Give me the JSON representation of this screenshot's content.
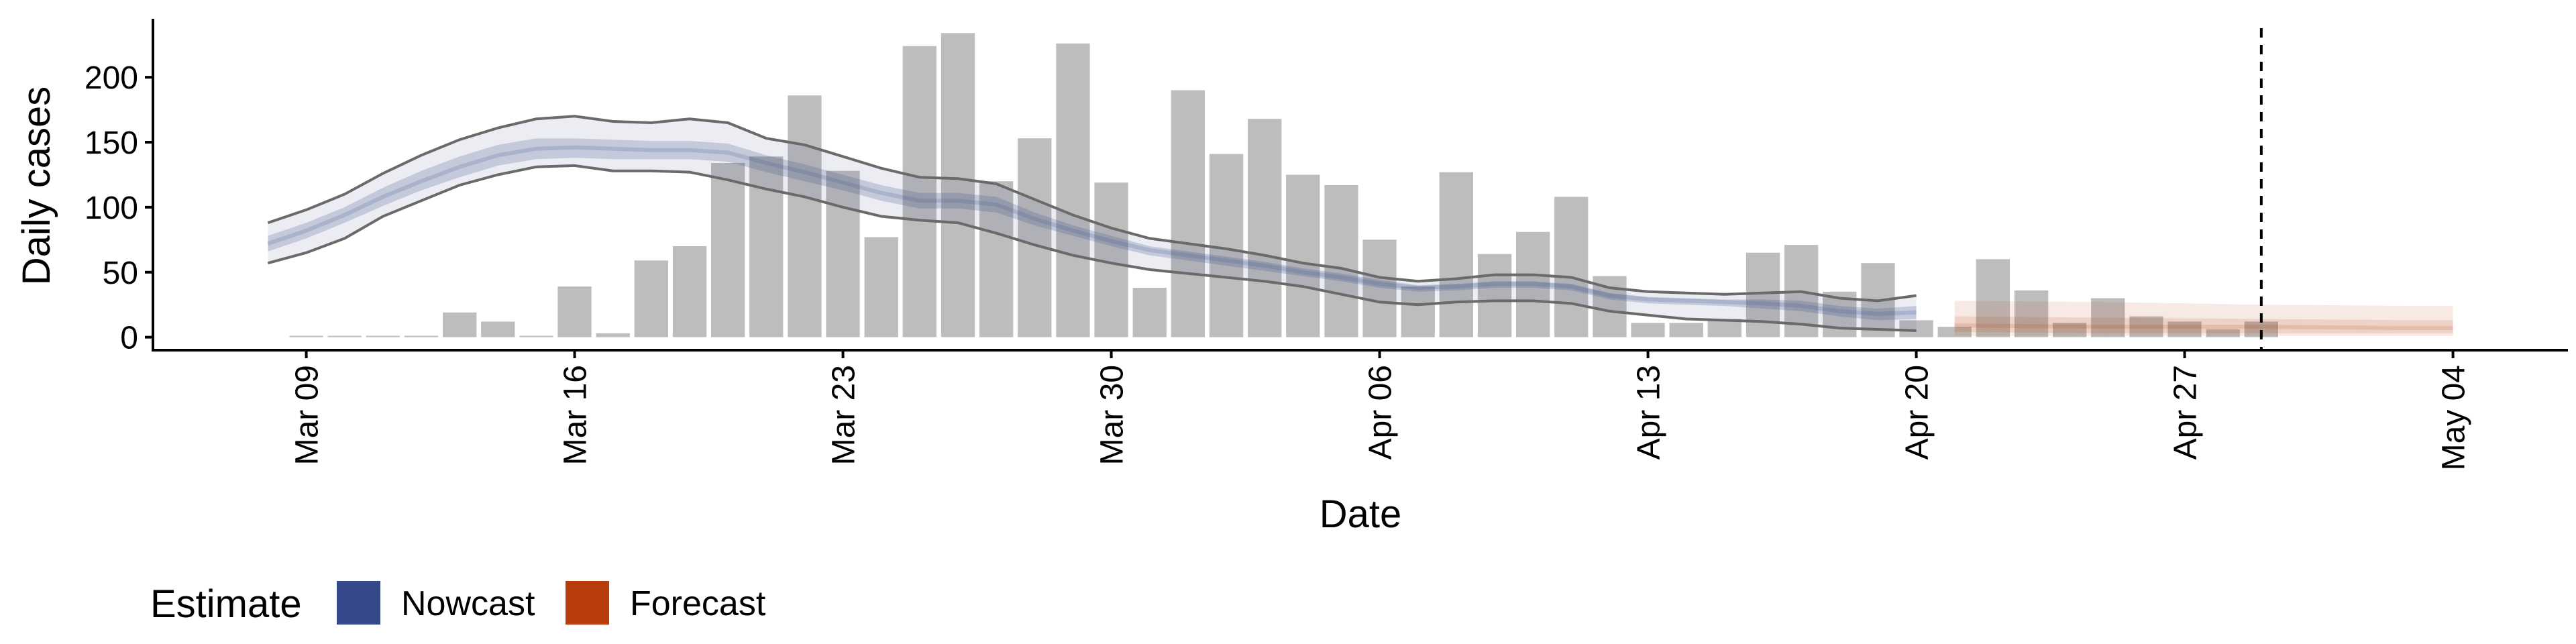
{
  "chart_data": {
    "type": "bar",
    "xlabel": "Date",
    "ylabel": "Daily cases",
    "ylim": [
      -10,
      245
    ],
    "yticks": [
      0,
      50,
      100,
      150,
      200
    ],
    "xlim": [
      "2020-03-05",
      "2020-05-07"
    ],
    "xticks": [
      "Mar 09",
      "Mar 16",
      "Mar 23",
      "Mar 30",
      "Apr 06",
      "Apr 13",
      "Apr 20",
      "Apr 27",
      "May 04"
    ],
    "xtick_dates": [
      "2020-03-09",
      "2020-03-16",
      "2020-03-23",
      "2020-03-30",
      "2020-04-06",
      "2020-04-13",
      "2020-04-20",
      "2020-04-27",
      "2020-05-04"
    ],
    "grid": false,
    "legend_position": "bottom-left",
    "cutoff_date": "2020-04-29",
    "observed_cases": {
      "color": "#bdbdbd",
      "dates": [
        "2020-03-09",
        "2020-03-10",
        "2020-03-11",
        "2020-03-12",
        "2020-03-13",
        "2020-03-14",
        "2020-03-15",
        "2020-03-16",
        "2020-03-17",
        "2020-03-18",
        "2020-03-19",
        "2020-03-20",
        "2020-03-21",
        "2020-03-22",
        "2020-03-23",
        "2020-03-24",
        "2020-03-25",
        "2020-03-26",
        "2020-03-27",
        "2020-03-28",
        "2020-03-29",
        "2020-03-30",
        "2020-03-31",
        "2020-04-01",
        "2020-04-02",
        "2020-04-03",
        "2020-04-04",
        "2020-04-05",
        "2020-04-06",
        "2020-04-07",
        "2020-04-08",
        "2020-04-09",
        "2020-04-10",
        "2020-04-11",
        "2020-04-12",
        "2020-04-13",
        "2020-04-14",
        "2020-04-15",
        "2020-04-16",
        "2020-04-17",
        "2020-04-18",
        "2020-04-19",
        "2020-04-20",
        "2020-04-21",
        "2020-04-22",
        "2020-04-23",
        "2020-04-24",
        "2020-04-25",
        "2020-04-26",
        "2020-04-27",
        "2020-04-28",
        "2020-04-29"
      ],
      "values": [
        1,
        0,
        1,
        0,
        19,
        12,
        0,
        39,
        3,
        59,
        70,
        134,
        139,
        186,
        128,
        77,
        224,
        234,
        120,
        153,
        226,
        119,
        38,
        190,
        141,
        168,
        125,
        117,
        75,
        39,
        127,
        64,
        81,
        108,
        47,
        11,
        11,
        14,
        65,
        71,
        35,
        57,
        13,
        8,
        60,
        36,
        11,
        30,
        16,
        12,
        6,
        12
      ]
    },
    "series": [
      {
        "name": "Nowcast",
        "color": "#3a4f8a",
        "dates": [
          "2020-03-08",
          "2020-03-09",
          "2020-03-10",
          "2020-03-11",
          "2020-03-12",
          "2020-03-13",
          "2020-03-14",
          "2020-03-15",
          "2020-03-16",
          "2020-03-17",
          "2020-03-18",
          "2020-03-19",
          "2020-03-20",
          "2020-03-21",
          "2020-03-22",
          "2020-03-23",
          "2020-03-24",
          "2020-03-25",
          "2020-03-26",
          "2020-03-27",
          "2020-03-28",
          "2020-03-29",
          "2020-03-30",
          "2020-03-31",
          "2020-04-01",
          "2020-04-02",
          "2020-04-03",
          "2020-04-04",
          "2020-04-05",
          "2020-04-06",
          "2020-04-07",
          "2020-04-08",
          "2020-04-09",
          "2020-04-10",
          "2020-04-11",
          "2020-04-12",
          "2020-04-13",
          "2020-04-14",
          "2020-04-15",
          "2020-04-16",
          "2020-04-17",
          "2020-04-18",
          "2020-04-19",
          "2020-04-20"
        ],
        "upper90": [
          88,
          98,
          110,
          126,
          140,
          152,
          161,
          168,
          170,
          166,
          165,
          168,
          165,
          153,
          148,
          139,
          130,
          123,
          122,
          118,
          106,
          94,
          84,
          76,
          72,
          68,
          63,
          57,
          53,
          46,
          43,
          45,
          48,
          48,
          46,
          38,
          35,
          34,
          33,
          34,
          35,
          30,
          28,
          32
        ],
        "upper50": [
          78,
          88,
          100,
          115,
          128,
          139,
          148,
          153,
          153,
          152,
          151,
          151,
          149,
          140,
          133,
          125,
          117,
          111,
          111,
          108,
          96,
          86,
          78,
          70,
          66,
          62,
          58,
          53,
          49,
          44,
          40,
          41,
          43,
          43,
          41,
          34,
          31,
          30,
          29,
          29,
          28,
          24,
          22,
          24
        ],
        "median": [
          72,
          82,
          94,
          108,
          120,
          131,
          140,
          145,
          146,
          145,
          144,
          144,
          142,
          134,
          127,
          119,
          111,
          105,
          105,
          102,
          91,
          82,
          74,
          67,
          63,
          59,
          55,
          50,
          46,
          41,
          38,
          39,
          41,
          41,
          39,
          32,
          29,
          28,
          27,
          26,
          24,
          20,
          18,
          19
        ],
        "lower50": [
          66,
          76,
          88,
          101,
          113,
          123,
          132,
          137,
          138,
          137,
          137,
          137,
          135,
          127,
          120,
          113,
          105,
          99,
          99,
          96,
          86,
          78,
          70,
          63,
          59,
          55,
          51,
          47,
          43,
          38,
          35,
          36,
          38,
          38,
          36,
          29,
          26,
          25,
          24,
          22,
          20,
          16,
          13,
          14
        ],
        "lower90": [
          57,
          65,
          76,
          93,
          105,
          117,
          125,
          131,
          132,
          128,
          128,
          127,
          121,
          114,
          108,
          100,
          93,
          90,
          88,
          80,
          71,
          63,
          57,
          52,
          49,
          46,
          43,
          39,
          33,
          27,
          25,
          27,
          28,
          28,
          26,
          20,
          17,
          14,
          13,
          12,
          10,
          7,
          6,
          5
        ]
      },
      {
        "name": "Forecast",
        "color": "#b23a0a",
        "dates": [
          "2020-04-21",
          "2020-04-25",
          "2020-04-29",
          "2020-05-03",
          "2020-05-04"
        ],
        "upper90": [
          28,
          27,
          25,
          24,
          24
        ],
        "upper50": [
          16,
          15,
          14,
          13,
          13
        ],
        "median": [
          9,
          8,
          8,
          7,
          7
        ],
        "lower50": [
          4,
          3,
          3,
          3,
          3
        ],
        "lower90": [
          1,
          1,
          1,
          1,
          1
        ]
      }
    ]
  },
  "legend": {
    "title": "Estimate",
    "items": [
      {
        "label": "Nowcast",
        "color": "#34488a"
      },
      {
        "label": "Forecast",
        "color": "#b83d0c"
      }
    ]
  }
}
